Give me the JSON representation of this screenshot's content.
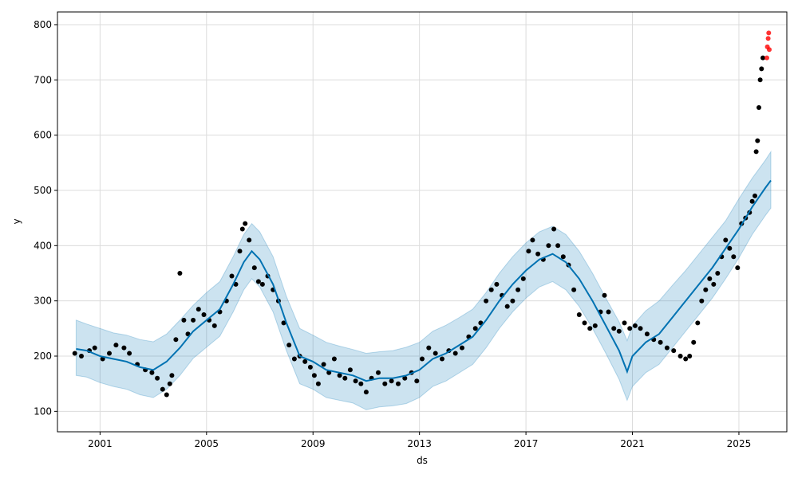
{
  "chart_data": {
    "type": "scatter",
    "xlabel": "ds",
    "ylabel": "y",
    "xlim": [
      1999.4,
      2026.8
    ],
    "ylim": [
      63,
      823
    ],
    "x_ticks": [
      2001,
      2005,
      2009,
      2013,
      2017,
      2021,
      2025
    ],
    "y_ticks": [
      100,
      200,
      300,
      400,
      500,
      600,
      700,
      800
    ],
    "grid": true,
    "colors": {
      "observed": "#000000",
      "forecast_line": "#0072B2",
      "uncertainty_band": "#0072B2",
      "anomaly": "#ff0000"
    },
    "trend": {
      "x": [
        2000.1,
        2000.5,
        2001.0,
        2001.5,
        2002.0,
        2002.5,
        2003.0,
        2003.5,
        2004.0,
        2004.5,
        2005.0,
        2005.5,
        2006.0,
        2006.4,
        2006.7,
        2007.0,
        2007.5,
        2008.0,
        2008.5,
        2009.0,
        2009.5,
        2010.0,
        2010.5,
        2011.0,
        2011.5,
        2012.0,
        2012.5,
        2013.0,
        2013.5,
        2014.0,
        2014.5,
        2015.0,
        2015.5,
        2016.0,
        2016.5,
        2017.0,
        2017.5,
        2018.0,
        2018.5,
        2019.0,
        2019.5,
        2020.0,
        2020.5,
        2020.8,
        2021.0,
        2021.5,
        2022.0,
        2022.5,
        2023.0,
        2023.5,
        2024.0,
        2024.5,
        2025.0,
        2025.5,
        2026.0,
        2026.2
      ],
      "y": [
        213,
        210,
        200,
        195,
        190,
        180,
        175,
        190,
        215,
        245,
        265,
        285,
        330,
        370,
        390,
        375,
        330,
        260,
        200,
        190,
        175,
        170,
        165,
        155,
        160,
        160,
        165,
        175,
        195,
        205,
        220,
        235,
        265,
        300,
        330,
        355,
        375,
        385,
        370,
        340,
        300,
        255,
        210,
        172,
        200,
        225,
        240,
        270,
        300,
        330,
        360,
        395,
        430,
        470,
        505,
        518
      ]
    },
    "band": {
      "x": [
        2000.1,
        2000.5,
        2001.0,
        2001.5,
        2002.0,
        2002.5,
        2003.0,
        2003.5,
        2004.0,
        2004.5,
        2005.0,
        2005.5,
        2006.0,
        2006.4,
        2006.7,
        2007.0,
        2007.5,
        2008.0,
        2008.5,
        2009.0,
        2009.5,
        2010.0,
        2010.5,
        2011.0,
        2011.5,
        2012.0,
        2012.5,
        2013.0,
        2013.5,
        2014.0,
        2014.5,
        2015.0,
        2015.5,
        2016.0,
        2016.5,
        2017.0,
        2017.5,
        2018.0,
        2018.5,
        2019.0,
        2019.5,
        2020.0,
        2020.5,
        2020.8,
        2021.0,
        2021.5,
        2022.0,
        2022.5,
        2023.0,
        2023.5,
        2024.0,
        2024.5,
        2025.0,
        2025.5,
        2026.0,
        2026.2
      ],
      "upper": [
        265,
        258,
        250,
        242,
        238,
        230,
        226,
        240,
        265,
        292,
        315,
        335,
        380,
        420,
        440,
        425,
        380,
        308,
        250,
        238,
        225,
        218,
        212,
        205,
        208,
        210,
        216,
        225,
        245,
        256,
        270,
        285,
        315,
        350,
        380,
        405,
        425,
        435,
        420,
        390,
        350,
        305,
        262,
        228,
        255,
        282,
        300,
        328,
        355,
        385,
        415,
        445,
        485,
        522,
        555,
        570
      ],
      "lower": [
        165,
        162,
        152,
        145,
        140,
        130,
        125,
        140,
        165,
        196,
        216,
        236,
        280,
        320,
        340,
        325,
        280,
        210,
        150,
        140,
        125,
        120,
        115,
        103,
        108,
        110,
        114,
        125,
        145,
        155,
        170,
        185,
        215,
        250,
        280,
        305,
        325,
        335,
        320,
        290,
        250,
        205,
        158,
        120,
        145,
        170,
        185,
        215,
        245,
        275,
        305,
        340,
        378,
        420,
        455,
        468
      ]
    },
    "observed": {
      "x": [
        2000.05,
        2000.3,
        2000.6,
        2000.8,
        2001.1,
        2001.35,
        2001.6,
        2001.9,
        2002.1,
        2002.4,
        2002.7,
        2002.95,
        2003.15,
        2003.35,
        2003.5,
        2003.62,
        2003.7,
        2003.85,
        2004.0,
        2004.15,
        2004.3,
        2004.5,
        2004.7,
        2004.9,
        2005.1,
        2005.3,
        2005.5,
        2005.75,
        2005.95,
        2006.1,
        2006.25,
        2006.35,
        2006.45,
        2006.6,
        2006.8,
        2006.95,
        2007.1,
        2007.3,
        2007.5,
        2007.7,
        2007.9,
        2008.1,
        2008.3,
        2008.5,
        2008.7,
        2008.9,
        2009.05,
        2009.2,
        2009.4,
        2009.6,
        2009.8,
        2010.0,
        2010.2,
        2010.4,
        2010.6,
        2010.8,
        2011.0,
        2011.2,
        2011.45,
        2011.7,
        2011.95,
        2012.2,
        2012.45,
        2012.7,
        2012.9,
        2013.1,
        2013.35,
        2013.6,
        2013.85,
        2014.1,
        2014.35,
        2014.6,
        2014.85,
        2015.1,
        2015.3,
        2015.5,
        2015.7,
        2015.9,
        2016.1,
        2016.3,
        2016.5,
        2016.7,
        2016.9,
        2017.1,
        2017.25,
        2017.45,
        2017.65,
        2017.85,
        2018.05,
        2018.2,
        2018.4,
        2018.6,
        2018.8,
        2019.0,
        2019.2,
        2019.4,
        2019.6,
        2019.8,
        2019.95,
        2020.1,
        2020.3,
        2020.5,
        2020.7,
        2020.9,
        2021.1,
        2021.3,
        2021.55,
        2021.8,
        2022.05,
        2022.3,
        2022.55,
        2022.8,
        2023.0,
        2023.15,
        2023.3,
        2023.45,
        2023.6,
        2023.75,
        2023.9,
        2024.05,
        2024.2,
        2024.35,
        2024.5,
        2024.65,
        2024.8,
        2024.95,
        2025.1,
        2025.25,
        2025.4,
        2025.5,
        2025.6,
        2025.65,
        2025.7,
        2025.75,
        2025.8,
        2025.85,
        2025.9
      ],
      "y": [
        205,
        200,
        210,
        215,
        195,
        205,
        220,
        215,
        205,
        185,
        175,
        170,
        160,
        140,
        130,
        150,
        165,
        230,
        350,
        265,
        240,
        265,
        285,
        275,
        265,
        255,
        280,
        300,
        345,
        330,
        390,
        430,
        440,
        410,
        360,
        335,
        330,
        345,
        320,
        300,
        260,
        220,
        195,
        200,
        190,
        180,
        165,
        150,
        185,
        170,
        195,
        165,
        160,
        175,
        155,
        150,
        135,
        160,
        170,
        150,
        155,
        150,
        160,
        170,
        155,
        195,
        215,
        205,
        195,
        210,
        205,
        215,
        235,
        250,
        260,
        300,
        320,
        330,
        310,
        290,
        300,
        320,
        340,
        390,
        410,
        385,
        375,
        400,
        430,
        400,
        380,
        365,
        320,
        275,
        260,
        250,
        255,
        280,
        310,
        280,
        250,
        245,
        260,
        250,
        255,
        250,
        240,
        230,
        225,
        215,
        210,
        200,
        195,
        200,
        225,
        260,
        300,
        320,
        340,
        330,
        350,
        380,
        410,
        395,
        380,
        360,
        440,
        450,
        460,
        480,
        490,
        570,
        590,
        650,
        700,
        720,
        740
      ],
      "anomalies": {
        "x": [
          2026.05,
          2026.07,
          2026.1,
          2026.12,
          2026.14
        ],
        "y": [
          740,
          760,
          775,
          785,
          755
        ]
      }
    }
  }
}
